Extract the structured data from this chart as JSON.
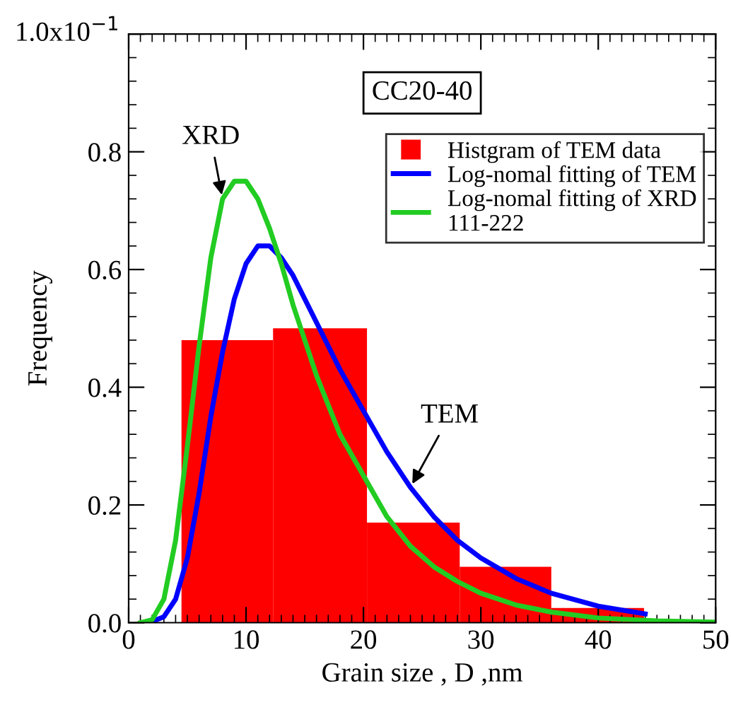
{
  "chart_data": {
    "type": "histogram",
    "xlabel": "Grain size , D ,nm",
    "ylabel": "Frequency",
    "series": [
      {
        "name": "Histgram of TEM data",
        "color": "#ff0000",
        "bins": [
          4.5,
          12.3,
          20.3,
          28.2,
          36,
          43.9
        ],
        "values": [
          0.48,
          0.5,
          0.17,
          0.095,
          0.025
        ]
      },
      {
        "type": "line",
        "name": "Log-nomal fitting of TEM",
        "color": "#0000ff",
        "x": [
          1.5,
          2,
          3,
          4,
          5,
          6,
          7,
          8,
          9,
          10,
          11,
          12,
          13,
          14,
          15,
          16,
          18,
          20,
          22,
          24,
          26,
          28,
          30,
          33,
          36,
          40,
          44
        ],
        "values": [
          0,
          0.002,
          0.01,
          0.04,
          0.11,
          0.22,
          0.35,
          0.46,
          0.55,
          0.61,
          0.64,
          0.64,
          0.62,
          0.59,
          0.55,
          0.51,
          0.43,
          0.36,
          0.29,
          0.23,
          0.18,
          0.14,
          0.11,
          0.075,
          0.05,
          0.028,
          0.015
        ]
      },
      {
        "type": "line",
        "name": "Log-nomal fitting of XRD\n111-222",
        "color": "#22cc22",
        "x": [
          1,
          2,
          3,
          4,
          5,
          6,
          7,
          8,
          9,
          10,
          11,
          12,
          13,
          14,
          15,
          16,
          18,
          20,
          22,
          24,
          26,
          28,
          30,
          33,
          36,
          40,
          45,
          50
        ],
        "values": [
          0,
          0.005,
          0.04,
          0.14,
          0.3,
          0.47,
          0.62,
          0.72,
          0.75,
          0.75,
          0.72,
          0.67,
          0.61,
          0.54,
          0.48,
          0.42,
          0.32,
          0.25,
          0.18,
          0.13,
          0.095,
          0.07,
          0.05,
          0.03,
          0.018,
          0.008,
          0.003,
          0.001
        ]
      }
    ],
    "annotations": [
      "CC20-40",
      "1.0x10$^{−1}$",
      {
        "text": "XRD",
        "x": 8,
        "y": 0.72
      },
      {
        "text": "TEM",
        "x": 24,
        "y": 0.23
      }
    ],
    "xlim": [
      0,
      50
    ],
    "xticks": [
      0,
      10,
      20,
      30,
      40,
      50
    ],
    "ylim": [
      0,
      1.0
    ],
    "yticks": [
      {
        "value": 0,
        "label": "0.0"
      },
      0.2,
      0.4,
      0.6,
      0.8,
      {
        "value": 1.0,
        "label": null
      }
    ],
    "grid": false,
    "legend": "top right"
  }
}
